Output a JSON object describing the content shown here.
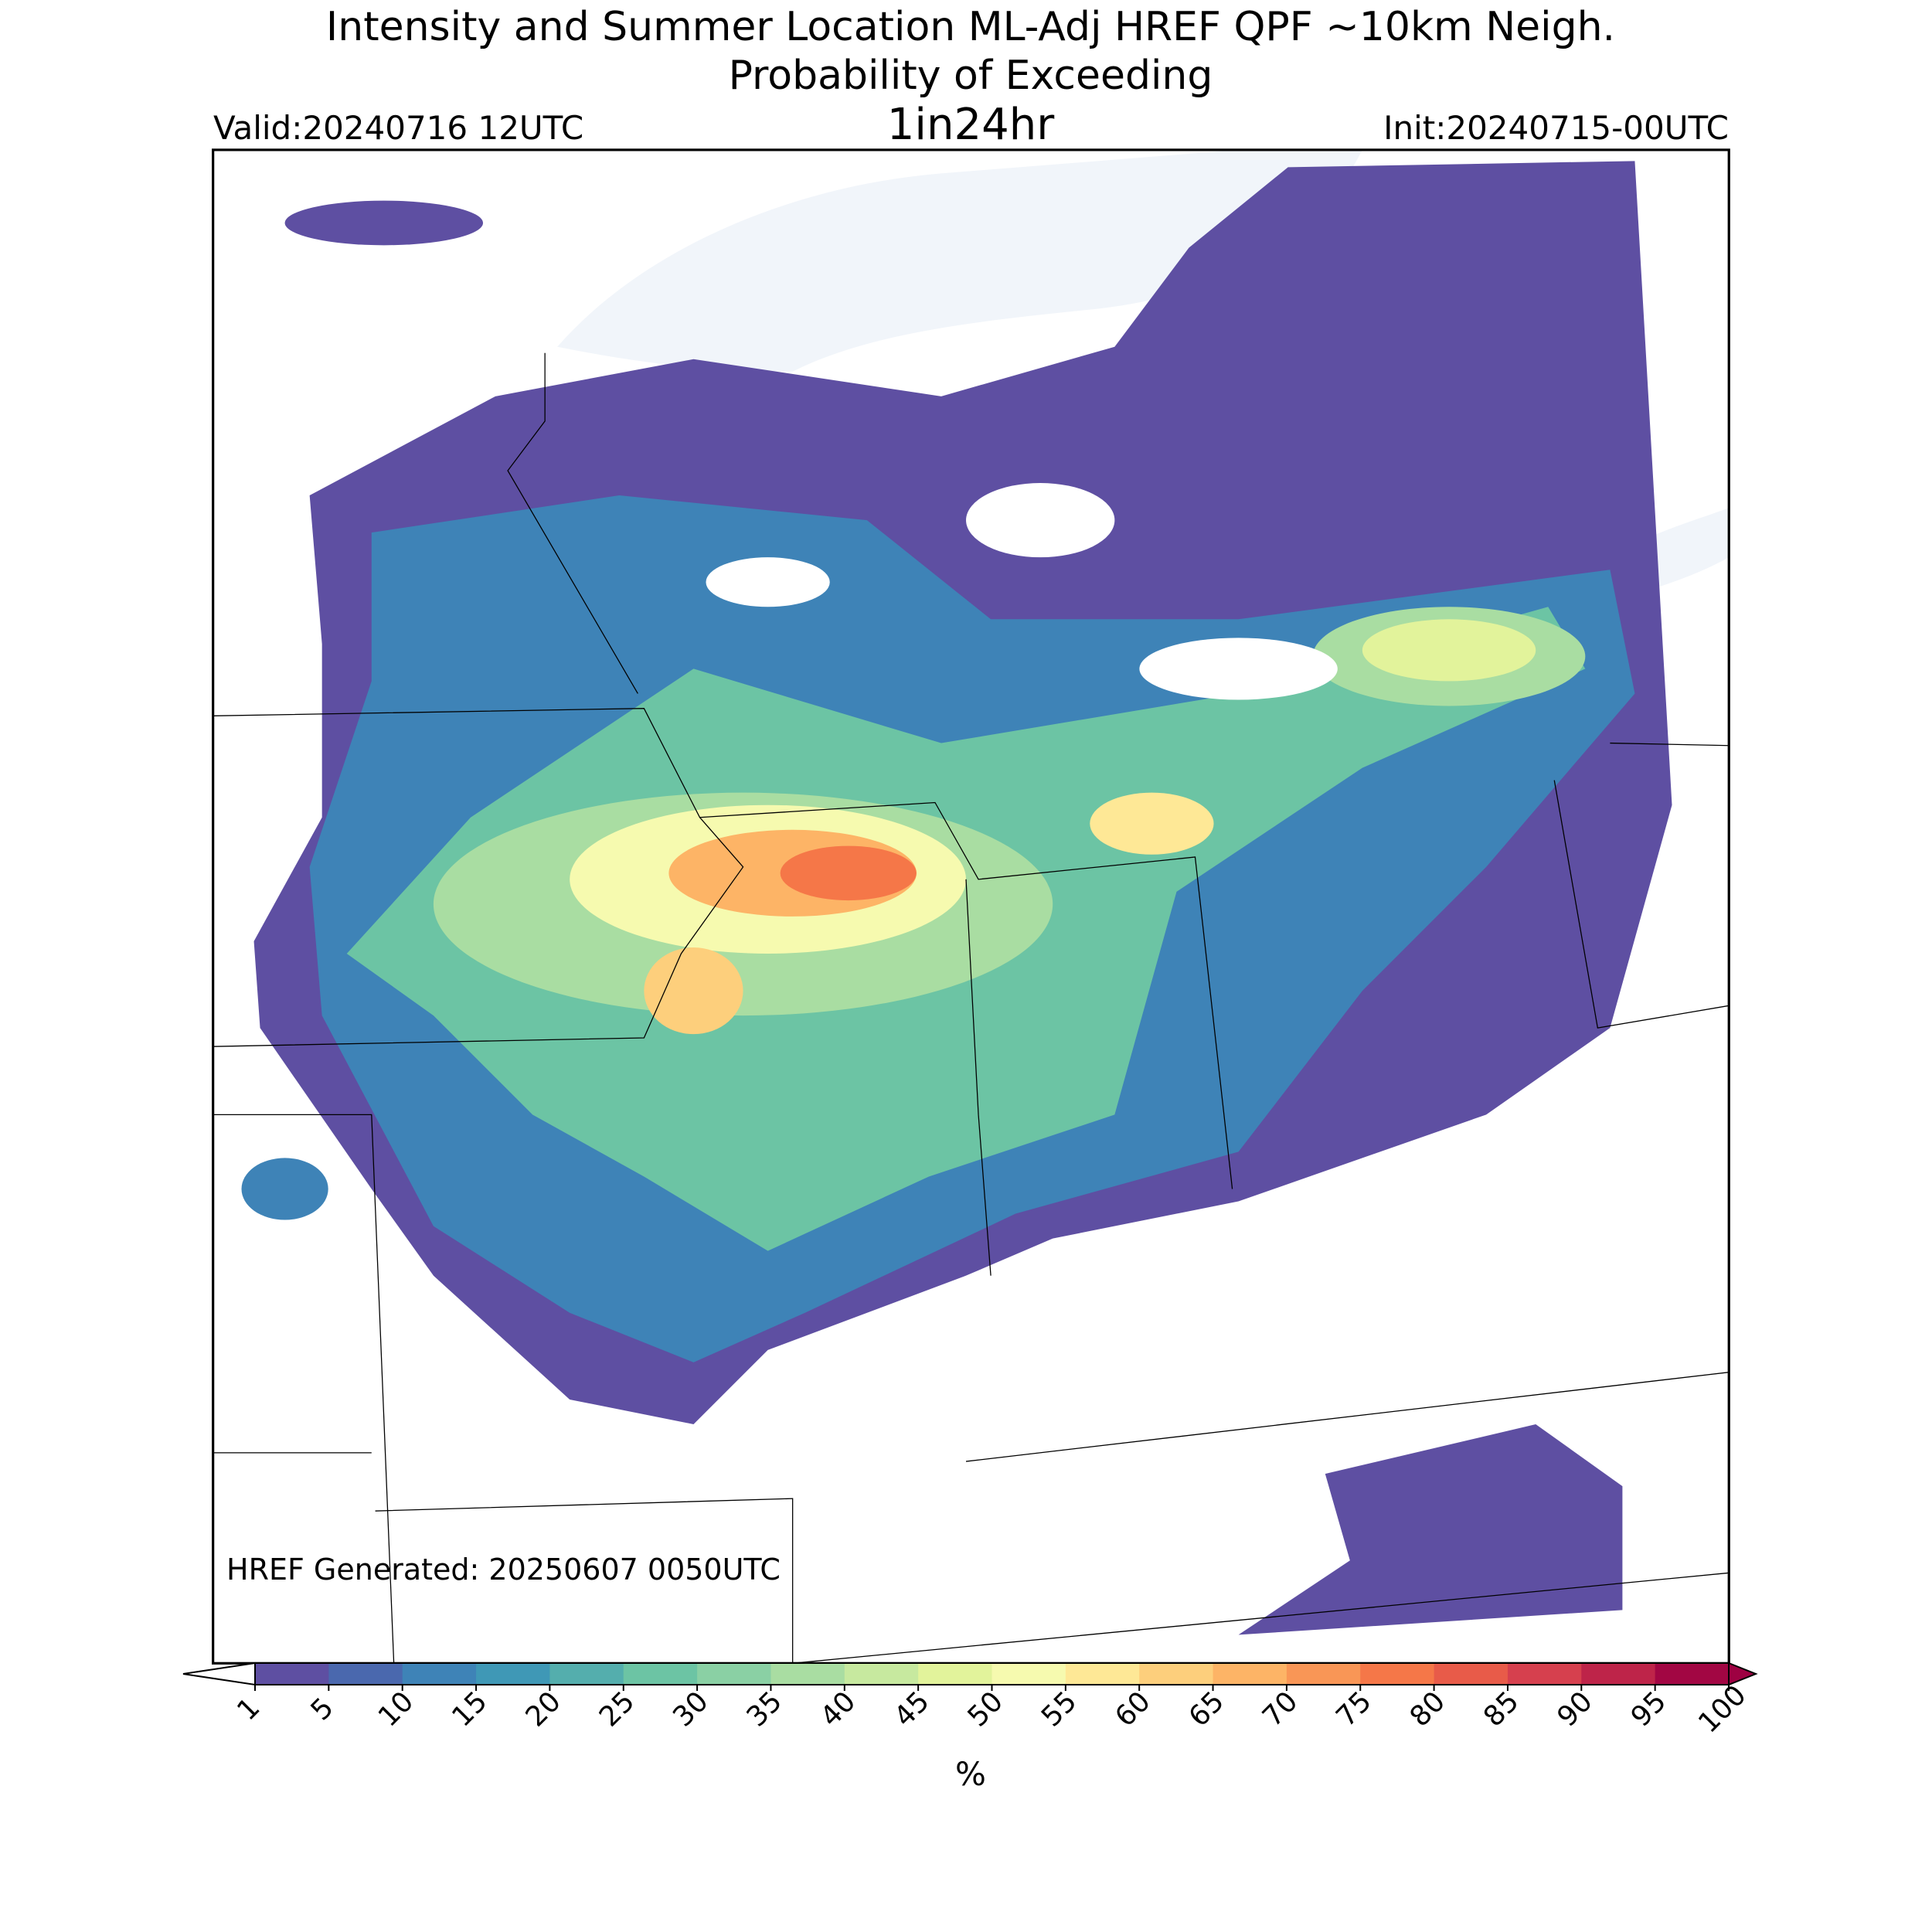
{
  "title": [
    "Intensity and Summer Location ML-Adj HREF QPF ~10km Neigh.",
    "Probability of Exceeding"
  ],
  "valid": "Valid:20240716 12UTC",
  "period": "1in24hr",
  "init": "Init:20240715-00UTC",
  "generated": "HREF Generated: 20250607 0050UTC",
  "colorbar": {
    "ticks": [
      1,
      5,
      10,
      15,
      20,
      25,
      30,
      35,
      40,
      45,
      50,
      55,
      60,
      65,
      70,
      75,
      80,
      85,
      90,
      95,
      100
    ],
    "colors": [
      "#5e4fa2",
      "#4a68ae",
      "#3e83b7",
      "#3f98b6",
      "#54aead",
      "#6cc4a4",
      "#8ad0a4",
      "#a9dda2",
      "#c7e99f",
      "#e2f39b",
      "#f6faaf",
      "#fee896",
      "#fdcf7c",
      "#fdb466",
      "#f99656",
      "#f57748",
      "#e85b49",
      "#d6404e",
      "#be2449",
      "#a20643"
    ],
    "under_color": "#ffffff",
    "over_color": "#9e0142",
    "label": "%"
  }
}
